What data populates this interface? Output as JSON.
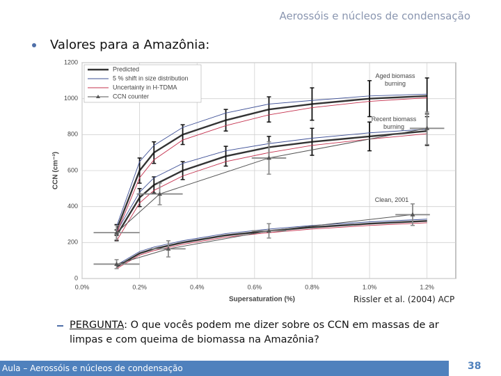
{
  "header": {
    "title": "Aerossóis e núcleos de condensação"
  },
  "bullet": "Valores para a Amazônia:",
  "citation": "Rissler et al. (2004) ACP",
  "question": {
    "label": "PERGUNTA",
    "text": ": O que vocês podem me dizer sobre os CCN em massas de ar limpas e com queima de biomassa na Amazônia?"
  },
  "footer": {
    "text": "Aula – Aerossóis e núcleos de condensação",
    "page": "38"
  },
  "chart_data": {
    "type": "line",
    "x_label": "Supersaturation (%)",
    "y_label": "CCN (cm⁻³)",
    "xlim": [
      0,
      1.3
    ],
    "ylim": [
      0,
      1200
    ],
    "xticks": [
      {
        "value": 0,
        "label": "0.0%"
      },
      {
        "value": 0.2,
        "label": "0.2%"
      },
      {
        "value": 0.4,
        "label": "0.4%"
      },
      {
        "value": 0.6,
        "label": "0.6%"
      },
      {
        "value": 0.8,
        "label": "0.8%"
      },
      {
        "value": 1.0,
        "label": "1.0%"
      },
      {
        "value": 1.2,
        "label": "1.2%"
      }
    ],
    "yticks": [
      0,
      200,
      400,
      600,
      800,
      1000,
      1200
    ],
    "grid": true,
    "x": [
      0.12,
      0.2,
      0.25,
      0.35,
      0.5,
      0.65,
      0.8,
      1.0,
      1.2
    ],
    "series": [
      {
        "name": "Predicted",
        "color": "#333333",
        "lines": [
          {
            "values": [
              270,
              600,
              700,
              800,
              880,
              940,
              970,
              1000,
              1015
            ],
            "errors": [
              30,
              70,
              60,
              55,
              60,
              70,
              90,
              100,
              100
            ]
          },
          {
            "values": [
              240,
              450,
              520,
              600,
              680,
              730,
              760,
              790,
              820
            ],
            "errors": [
              30,
              50,
              45,
              50,
              55,
              60,
              75,
              80,
              80
            ]
          },
          {
            "values": [
              65,
              140,
              165,
              200,
              240,
              265,
              285,
              305,
              320
            ]
          }
        ]
      },
      {
        "name": "5 % shift in size distribution",
        "color": "#3d4f96",
        "lines": [
          {
            "values": [
              290,
              650,
              740,
              840,
              920,
              970,
              990,
              1015,
              1025
            ]
          },
          {
            "values": [
              260,
              480,
              560,
              640,
              710,
              750,
              780,
              810,
              830
            ]
          },
          {
            "values": [
              75,
              150,
              175,
              210,
              250,
              275,
              295,
              315,
              330
            ]
          }
        ]
      },
      {
        "name": "Uncertainty in H-TDMA",
        "color": "#c4304d",
        "lines": [
          {
            "values": [
              250,
              560,
              660,
              770,
              850,
              910,
              950,
              985,
              1005
            ]
          },
          {
            "values": [
              210,
              420,
              490,
              570,
              650,
              700,
              740,
              775,
              805
            ]
          },
          {
            "values": [
              55,
              130,
              155,
              190,
              230,
              255,
              275,
              295,
              310
            ]
          }
        ]
      },
      {
        "name": "CCN counter",
        "color": "#555555",
        "marker": "triangle",
        "lines": [
          {
            "x": [
              0.12,
              0.27,
              0.65,
              1.2
            ],
            "values": [
              255,
              470,
              670,
              835
            ],
            "errors": [
              40,
              60,
              90,
              90
            ],
            "xerrors": [
              0.08,
              0.08,
              0.06,
              0.06
            ]
          },
          {
            "x": [
              0.12,
              0.3,
              0.65,
              1.15
            ],
            "values": [
              80,
              165,
              265,
              355
            ],
            "errors": [
              25,
              45,
              40,
              60
            ],
            "xerrors": [
              0.08,
              0.06,
              0.06,
              0.06
            ]
          }
        ]
      }
    ],
    "annotations": [
      [
        "Aged biomass",
        "burning"
      ],
      [
        "Recent biomass",
        "burning"
      ],
      [
        "Clean, 2001"
      ]
    ]
  }
}
